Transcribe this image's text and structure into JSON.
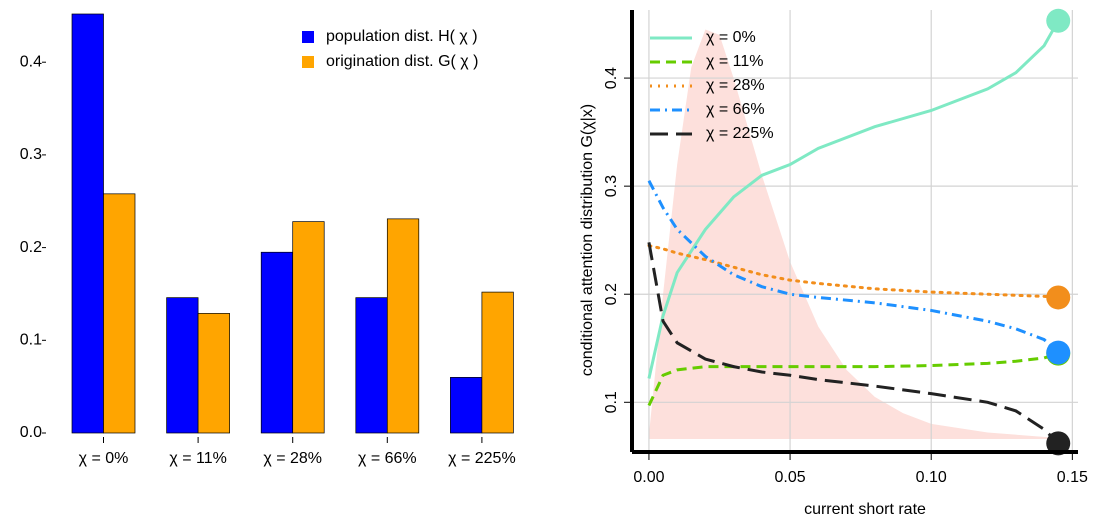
{
  "chart_data": [
    {
      "type": "bar",
      "categories": [
        "χ = 0%",
        "χ = 11%",
        "χ = 28%",
        "χ = 66%",
        "χ = 225%"
      ],
      "category_colors": [
        "#7fe9c4",
        "#66cc00",
        "#ff8c1a",
        "#1e90ff",
        "#333333"
      ],
      "series": [
        {
          "name": "population dist. H( χ )",
          "color": "#0000ff",
          "values": [
            0.452,
            0.146,
            0.195,
            0.146,
            0.06
          ]
        },
        {
          "name": "origination dist. G( χ )",
          "color": "#ffa500",
          "values": [
            0.258,
            0.129,
            0.228,
            0.231,
            0.152
          ]
        }
      ],
      "ylim": [
        0,
        0.452
      ],
      "yticks": [
        {
          "value": 0,
          "label": "0.0"
        },
        0.1,
        0.2,
        0.3,
        0.4
      ],
      "legend": "top-right"
    },
    {
      "type": "line",
      "xlabel": "current short rate",
      "ylabel": "conditional attention distribution G(χ|x)",
      "xlim": [
        -0.006,
        0.152
      ],
      "ylim": [
        0.054,
        0.463
      ],
      "xticks": [
        {
          "value": 0,
          "label": "0.00"
        },
        0.05,
        {
          "value": 0.1,
          "label": "0.10"
        },
        0.15
      ],
      "yticks": [
        0.1,
        0.2,
        0.3,
        0.4
      ],
      "grid": true,
      "legend": "top-left",
      "end_markers": true,
      "shaded_area": {
        "color": "#fde0dc",
        "base": 0.066,
        "x": [
          0,
          0.005,
          0.01,
          0.015,
          0.02,
          0.025,
          0.03,
          0.04,
          0.05,
          0.06,
          0.07,
          0.08,
          0.09,
          0.1,
          0.12,
          0.145
        ],
        "values": [
          0.07,
          0.2,
          0.32,
          0.41,
          0.445,
          0.44,
          0.4,
          0.31,
          0.23,
          0.17,
          0.13,
          0.105,
          0.09,
          0.08,
          0.072,
          0.067
        ]
      },
      "x": [
        0,
        0.005,
        0.01,
        0.02,
        0.03,
        0.04,
        0.05,
        0.06,
        0.08,
        0.1,
        0.12,
        0.13,
        0.14,
        0.145
      ],
      "series": [
        {
          "name": "χ = 0%",
          "color": "#7fe9c4",
          "dash": "solid",
          "values": [
            0.122,
            0.18,
            0.22,
            0.26,
            0.29,
            0.31,
            0.32,
            0.335,
            0.355,
            0.37,
            0.39,
            0.405,
            0.43,
            0.453
          ]
        },
        {
          "name": "χ = 11%",
          "color": "#66cc00",
          "dash": "dashed",
          "values": [
            0.097,
            0.125,
            0.13,
            0.133,
            0.133,
            0.133,
            0.133,
            0.133,
            0.133,
            0.134,
            0.136,
            0.138,
            0.141,
            0.145
          ]
        },
        {
          "name": "χ = 28%",
          "color": "#f28e1c",
          "dash": "dotted",
          "values": [
            0.245,
            0.242,
            0.238,
            0.232,
            0.225,
            0.218,
            0.213,
            0.21,
            0.205,
            0.202,
            0.2,
            0.199,
            0.198,
            0.197
          ]
        },
        {
          "name": "χ = 66%",
          "color": "#1e90ff",
          "dash": "dashdot",
          "values": [
            0.305,
            0.28,
            0.26,
            0.235,
            0.218,
            0.207,
            0.2,
            0.197,
            0.192,
            0.185,
            0.175,
            0.168,
            0.158,
            0.146
          ]
        },
        {
          "name": "χ = 225%",
          "color": "#222222",
          "dash": "longdash",
          "values": [
            0.248,
            0.175,
            0.155,
            0.14,
            0.133,
            0.128,
            0.125,
            0.121,
            0.115,
            0.108,
            0.1,
            0.092,
            0.075,
            0.062
          ]
        }
      ]
    }
  ]
}
